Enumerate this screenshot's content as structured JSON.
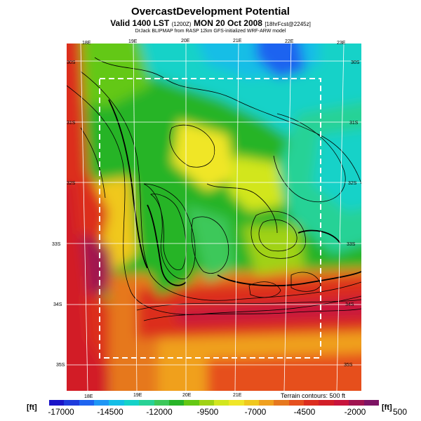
{
  "header": {
    "title": "OvercastDevelopment Potential",
    "valid_prefix": "Valid 1400 LST",
    "valid_small_1": "(1200Z)",
    "valid_date": "MON 20 Oct 2008",
    "valid_small_2": "[18hrFcst@2245z]",
    "byline": "DrJack BLIPMAP from RASP 12km GFS-initialized WRF-ARW model"
  },
  "map": {
    "lon_labels": [
      "18E",
      "19E",
      "20E",
      "21E",
      "22E",
      "23E",
      "18E",
      "19E",
      "20E",
      "21E"
    ],
    "lat_labels_left": [
      "30S",
      "31S",
      "32S",
      "33S",
      "34S",
      "35S"
    ],
    "lat_labels_right": [
      "30S",
      "31S",
      "32S",
      "33S",
      "34S",
      "35S"
    ],
    "terrain_note": "Terrain contours: 500 ft"
  },
  "colorbar": {
    "unit_left": "[ft]",
    "unit_right": "[ft]",
    "ticks": [
      "-17000",
      "-14500",
      "-12000",
      "-9500",
      "-7000",
      "-4500",
      "-2000",
      "500"
    ],
    "colors": [
      "#1a14c8",
      "#1e3cdc",
      "#1e64f0",
      "#1e96f5",
      "#14bee6",
      "#14d2c8",
      "#28d296",
      "#3cc85a",
      "#28b428",
      "#64c814",
      "#a0d214",
      "#d2e61e",
      "#f0e628",
      "#f0c81e",
      "#f0a01e",
      "#e6781e",
      "#e6501e",
      "#dc2d1e",
      "#d21e28",
      "#c8143c",
      "#a01450",
      "#7d1464"
    ]
  }
}
